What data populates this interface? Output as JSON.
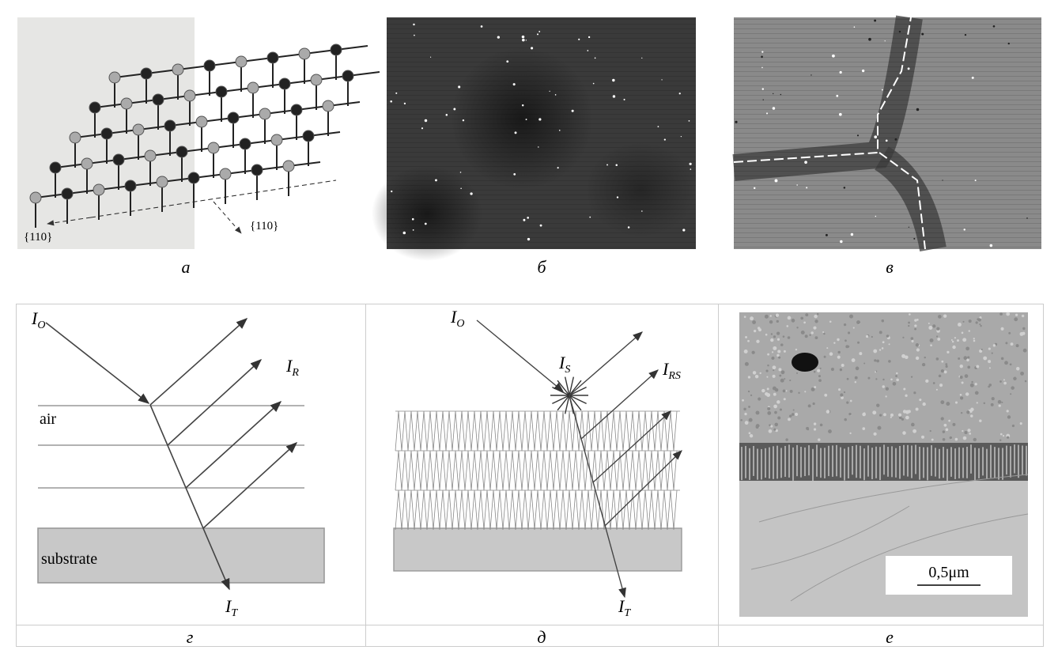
{
  "top_row": [
    {
      "caption": "а",
      "annotations": [
        "{110}",
        "{110}"
      ]
    },
    {
      "caption": "б"
    },
    {
      "caption": "в"
    }
  ],
  "bottom_row": [
    {
      "caption": "г",
      "beam_labels": [
        {
          "base": "I",
          "sub": "O"
        },
        {
          "base": "I",
          "sub": "R"
        },
        {
          "base": "I",
          "sub": "T"
        }
      ],
      "layer_labels": [
        "air",
        "substrate"
      ]
    },
    {
      "caption": "д",
      "beam_labels": [
        {
          "base": "I",
          "sub": "O"
        },
        {
          "base": "I",
          "sub": "S"
        },
        {
          "base": "I",
          "sub": "RS"
        },
        {
          "base": "I",
          "sub": "T"
        }
      ]
    },
    {
      "caption": "е",
      "scale_bar": "0,5μm"
    }
  ]
}
